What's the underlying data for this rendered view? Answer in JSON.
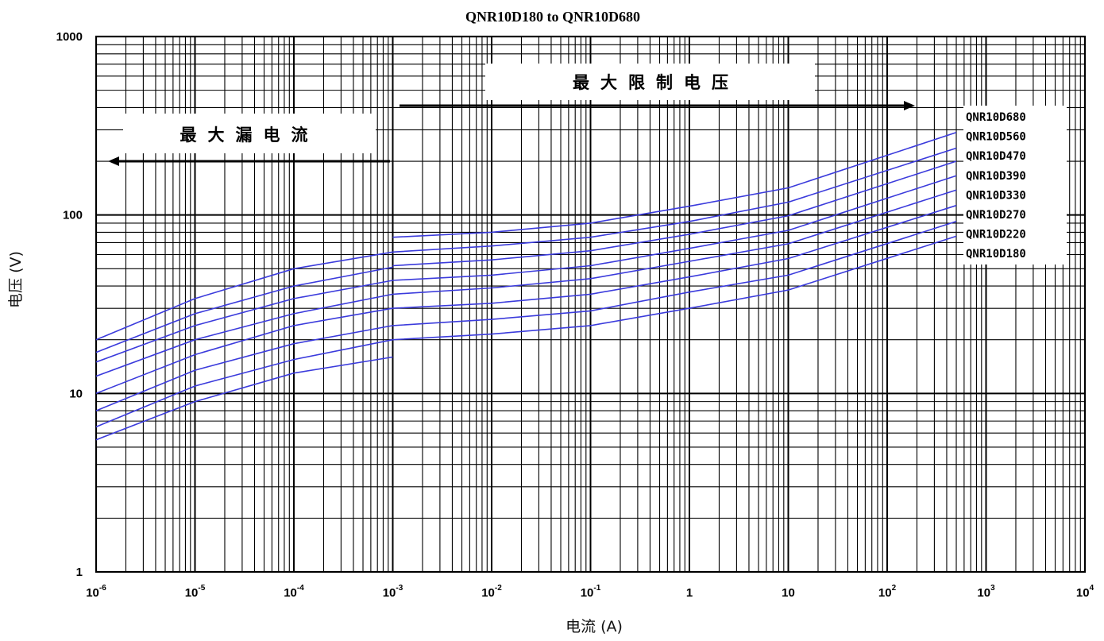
{
  "chart_data": {
    "type": "line",
    "title": "QNR10D180 to QNR10D680",
    "xlabel": "电流 (A)",
    "ylabel": "电压 (V)",
    "x_scale": "log",
    "y_scale": "log",
    "xlim": [
      1e-06,
      10000
    ],
    "ylim": [
      1,
      1000
    ],
    "x_ticks": [
      {
        "base": "10",
        "exp": "-6"
      },
      {
        "base": "10",
        "exp": "-5"
      },
      {
        "base": "10",
        "exp": "-4"
      },
      {
        "base": "10",
        "exp": "-3"
      },
      {
        "base": "10",
        "exp": "-2"
      },
      {
        "base": "10",
        "exp": "-1"
      },
      {
        "base": "1",
        "exp": ""
      },
      {
        "base": "10",
        "exp": ""
      },
      {
        "base": "10",
        "exp": "2"
      },
      {
        "base": "10",
        "exp": "3"
      },
      {
        "base": "10",
        "exp": "4"
      }
    ],
    "y_ticks": [
      "1",
      "10",
      "100",
      "1000"
    ],
    "grid": true,
    "line_color": "#3b3bdc",
    "annotations": [
      {
        "text": "最大漏电流",
        "arrow": "left"
      },
      {
        "text": "最大限制电压",
        "arrow": "right"
      }
    ],
    "legend_position": "right",
    "series": [
      {
        "name": "QNR10D680",
        "leakage": {
          "x": [
            1e-06,
            1e-05,
            0.0001,
            0.001
          ],
          "y": [
            20,
            34,
            50,
            62
          ]
        },
        "clamping": {
          "x": [
            0.001,
            0.01,
            0.1,
            1,
            10,
            500
          ],
          "y": [
            75,
            80,
            90,
            112,
            142,
            290
          ]
        }
      },
      {
        "name": "QNR10D560",
        "leakage": {
          "x": [
            1e-06,
            1e-05,
            0.0001,
            0.001
          ],
          "y": [
            17,
            28,
            40,
            51
          ]
        },
        "clamping": {
          "x": [
            0.001,
            0.01,
            0.1,
            1,
            10,
            500
          ],
          "y": [
            62,
            67,
            75,
            92,
            118,
            237
          ]
        }
      },
      {
        "name": "QNR10D470",
        "leakage": {
          "x": [
            1e-06,
            1e-05,
            0.0001,
            0.001
          ],
          "y": [
            15,
            24,
            34,
            43
          ]
        },
        "clamping": {
          "x": [
            0.001,
            0.01,
            0.1,
            1,
            10,
            500
          ],
          "y": [
            52,
            56,
            63,
            78,
            99,
            200
          ]
        }
      },
      {
        "name": "QNR10D390",
        "leakage": {
          "x": [
            1e-06,
            1e-05,
            0.0001,
            0.001
          ],
          "y": [
            12.5,
            20,
            28,
            36
          ]
        },
        "clamping": {
          "x": [
            0.001,
            0.01,
            0.1,
            1,
            10,
            500
          ],
          "y": [
            43,
            46,
            52,
            65,
            82,
            166
          ]
        }
      },
      {
        "name": "QNR10D330",
        "leakage": {
          "x": [
            1e-06,
            1e-05,
            0.0001,
            0.001
          ],
          "y": [
            10,
            16.5,
            24,
            30
          ]
        },
        "clamping": {
          "x": [
            0.001,
            0.01,
            0.1,
            1,
            10,
            500
          ],
          "y": [
            36,
            39,
            44,
            55,
            69,
            138
          ]
        }
      },
      {
        "name": "QNR10D270",
        "leakage": {
          "x": [
            1e-06,
            1e-05,
            0.0001,
            0.001
          ],
          "y": [
            8,
            13.5,
            19,
            24
          ]
        },
        "clamping": {
          "x": [
            0.001,
            0.01,
            0.1,
            1,
            10,
            500
          ],
          "y": [
            30,
            32,
            36,
            45,
            57,
            113
          ]
        }
      },
      {
        "name": "QNR10D220",
        "leakage": {
          "x": [
            1e-06,
            1e-05,
            0.0001,
            0.001
          ],
          "y": [
            6.5,
            11,
            15.5,
            20
          ]
        },
        "clamping": {
          "x": [
            0.001,
            0.01,
            0.1,
            1,
            10,
            500
          ],
          "y": [
            24,
            26,
            29,
            37,
            46,
            92
          ]
        }
      },
      {
        "name": "QNR10D180",
        "leakage": {
          "x": [
            1e-06,
            1e-05,
            0.0001,
            0.001
          ],
          "y": [
            5.5,
            9,
            13,
            16
          ]
        },
        "clamping": {
          "x": [
            0.001,
            0.01,
            0.1,
            1,
            10,
            500
          ],
          "y": [
            20,
            21.5,
            24,
            30,
            38,
            76
          ]
        }
      }
    ]
  }
}
